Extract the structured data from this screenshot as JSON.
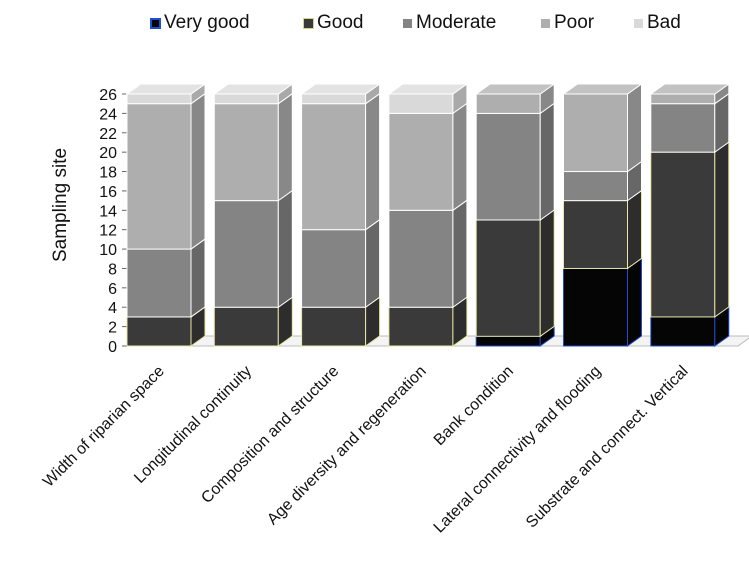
{
  "chart_data": {
    "type": "bar",
    "stacked": true,
    "style": "3d",
    "title": "",
    "xlabel": "",
    "ylabel": "Sampling  site",
    "ylim": [
      0,
      26
    ],
    "yticks": [
      0,
      2,
      4,
      6,
      8,
      10,
      12,
      14,
      16,
      18,
      20,
      22,
      24,
      26
    ],
    "grid": false,
    "legend_position": "top",
    "categories": [
      "Width of riparian space",
      "Longitudinal continuity",
      "Composition and structure",
      "Age diversity and regeneration",
      "Bank condition",
      "Lateral connectivity and flooding",
      "Substrate and connect. Vertical"
    ],
    "series": [
      {
        "name": "Very good",
        "color": "#050505",
        "values": [
          0,
          0,
          0,
          0,
          1,
          8,
          3
        ]
      },
      {
        "name": "Good",
        "color": "#3a3a3a",
        "values": [
          3,
          4,
          4,
          4,
          12,
          7,
          17
        ]
      },
      {
        "name": "Moderate",
        "color": "#848484",
        "values": [
          7,
          11,
          8,
          10,
          11,
          3,
          5
        ]
      },
      {
        "name": "Poor",
        "color": "#aeaeae",
        "values": [
          15,
          10,
          13,
          10,
          2,
          8,
          1
        ]
      },
      {
        "name": "Bad",
        "color": "#d9d9d9",
        "values": [
          1,
          1,
          1,
          2,
          0,
          0,
          0
        ]
      }
    ]
  }
}
